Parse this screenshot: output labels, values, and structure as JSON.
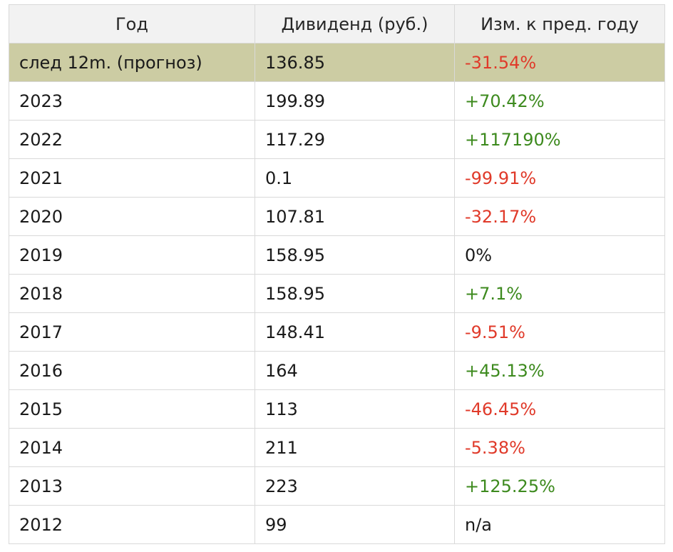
{
  "columns": [
    "Год",
    "Дивиденд (руб.)",
    "Изм. к пред. году"
  ],
  "rows": [
    {
      "year": "след 12m. (прогноз)",
      "dividend": "136.85",
      "change": "-31.54%",
      "trend": "neg",
      "highlight": true
    },
    {
      "year": "2023",
      "dividend": "199.89",
      "change": "+70.42%",
      "trend": "pos"
    },
    {
      "year": "2022",
      "dividend": "117.29",
      "change": "+117190%",
      "trend": "pos"
    },
    {
      "year": "2021",
      "dividend": "0.1",
      "change": "-99.91%",
      "trend": "neg"
    },
    {
      "year": "2020",
      "dividend": "107.81",
      "change": "-32.17%",
      "trend": "neg"
    },
    {
      "year": "2019",
      "dividend": "158.95",
      "change": "0%",
      "trend": "neu"
    },
    {
      "year": "2018",
      "dividend": "158.95",
      "change": "+7.1%",
      "trend": "pos"
    },
    {
      "year": "2017",
      "dividend": "148.41",
      "change": "-9.51%",
      "trend": "neg"
    },
    {
      "year": "2016",
      "dividend": "164",
      "change": "+45.13%",
      "trend": "pos"
    },
    {
      "year": "2015",
      "dividend": "113",
      "change": "-46.45%",
      "trend": "neg"
    },
    {
      "year": "2014",
      "dividend": "211",
      "change": "-5.38%",
      "trend": "neg"
    },
    {
      "year": "2013",
      "dividend": "223",
      "change": "+125.25%",
      "trend": "pos"
    },
    {
      "year": "2012",
      "dividend": "99",
      "change": "n/a",
      "trend": "neu"
    }
  ],
  "colors": {
    "positive": "#3d8a1e",
    "negative": "#e03a2a",
    "highlight_row": "#cccca3",
    "header_bg": "#f2f2f2",
    "border": "#d9d9d9"
  }
}
